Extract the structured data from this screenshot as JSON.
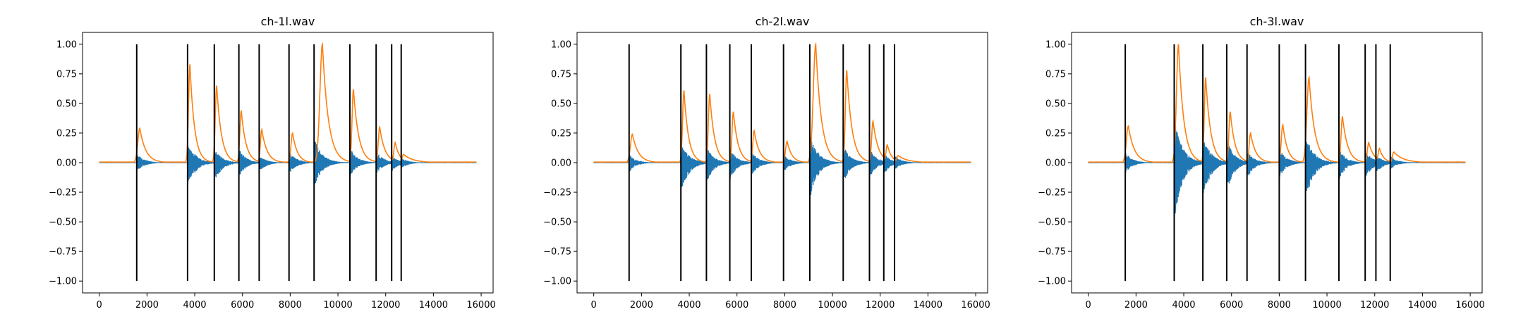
{
  "colors": {
    "waveform": "#1f77b4",
    "envelope": "#ff7f0e",
    "onset": "#000000",
    "axes": "#000000",
    "background": "#ffffff"
  },
  "chart_data": [
    {
      "type": "line",
      "title": "ch-1l.wav",
      "xlim": [
        -700,
        16500
      ],
      "ylim": [
        -1.1,
        1.1
      ],
      "xticks": [
        0,
        2000,
        4000,
        6000,
        8000,
        10000,
        12000,
        14000,
        16000
      ],
      "yticks": [
        -1.0,
        -0.75,
        -0.5,
        -0.25,
        0.0,
        0.25,
        0.5,
        0.75,
        1.0
      ],
      "xtick_labels": [
        "0",
        "2000",
        "4000",
        "6000",
        "8000",
        "10000",
        "12000",
        "14000",
        "16000"
      ],
      "ytick_labels": [
        "−1.00",
        "−0.75",
        "−0.50",
        "−0.25",
        "0.00",
        "0.25",
        "0.50",
        "0.75",
        "1.00"
      ],
      "grid": false,
      "x_extent": [
        0,
        15800
      ],
      "onsets": [
        1570,
        3700,
        4820,
        5850,
        6700,
        7950,
        9000,
        10500,
        11600,
        12250,
        12650
      ],
      "onset_ymin": -1.0,
      "onset_ymax": 1.0,
      "series": [
        {
          "label": "envelope",
          "peaks": [
            {
              "x": 1700,
              "y": 0.29,
              "rise": 130,
              "decay": 250
            },
            {
              "x": 3800,
              "y": 0.83,
              "rise": 90,
              "decay": 190
            },
            {
              "x": 4920,
              "y": 0.65,
              "rise": 90,
              "decay": 200
            },
            {
              "x": 5950,
              "y": 0.44,
              "rise": 90,
              "decay": 200
            },
            {
              "x": 6810,
              "y": 0.28,
              "rise": 90,
              "decay": 220
            },
            {
              "x": 8100,
              "y": 0.25,
              "rise": 100,
              "decay": 200
            },
            {
              "x": 9350,
              "y": 1.0,
              "rise": 160,
              "decay": 250
            },
            {
              "x": 10650,
              "y": 0.62,
              "rise": 90,
              "decay": 220
            },
            {
              "x": 11750,
              "y": 0.3,
              "rise": 90,
              "decay": 220
            },
            {
              "x": 12400,
              "y": 0.17,
              "rise": 90,
              "decay": 180
            },
            {
              "x": 12750,
              "y": 0.07,
              "rise": 90,
              "decay": 400
            }
          ]
        },
        {
          "label": "waveform",
          "bursts": [
            {
              "x": 1570,
              "pos": 0.08,
              "neg": -0.08,
              "decay": 300
            },
            {
              "x": 3700,
              "pos": 0.19,
              "neg": -0.22,
              "decay": 320
            },
            {
              "x": 4820,
              "pos": 0.13,
              "neg": -0.18,
              "decay": 300
            },
            {
              "x": 5850,
              "pos": 0.12,
              "neg": -0.12,
              "decay": 300
            },
            {
              "x": 6700,
              "pos": 0.06,
              "neg": -0.08,
              "decay": 300
            },
            {
              "x": 7950,
              "pos": 0.1,
              "neg": -0.1,
              "decay": 300
            },
            {
              "x": 9000,
              "pos": 0.22,
              "neg": -0.22,
              "decay": 320
            },
            {
              "x": 10500,
              "pos": 0.13,
              "neg": -0.12,
              "decay": 300
            },
            {
              "x": 11600,
              "pos": 0.1,
              "neg": -0.1,
              "decay": 300
            },
            {
              "x": 12250,
              "pos": 0.06,
              "neg": -0.08,
              "decay": 280
            },
            {
              "x": 12650,
              "pos": 0.04,
              "neg": -0.05,
              "decay": 300
            }
          ]
        }
      ]
    },
    {
      "type": "line",
      "title": "ch-2l.wav",
      "xlim": [
        -700,
        16500
      ],
      "ylim": [
        -1.1,
        1.1
      ],
      "xticks": [
        0,
        2000,
        4000,
        6000,
        8000,
        10000,
        12000,
        14000,
        16000
      ],
      "yticks": [
        -1.0,
        -0.75,
        -0.5,
        -0.25,
        0.0,
        0.25,
        0.5,
        0.75,
        1.0
      ],
      "xtick_labels": [
        "0",
        "2000",
        "4000",
        "6000",
        "8000",
        "10000",
        "12000",
        "14000",
        "16000"
      ],
      "ytick_labels": [
        "−1.00",
        "−0.75",
        "−0.50",
        "−0.25",
        "0.00",
        "0.25",
        "0.50",
        "0.75",
        "1.00"
      ],
      "grid": false,
      "x_extent": [
        0,
        15800
      ],
      "onsets": [
        1480,
        3650,
        4720,
        5700,
        6600,
        7950,
        9050,
        10450,
        11550,
        12150,
        12600
      ],
      "onset_ymin": -1.0,
      "onset_ymax": 1.0,
      "series": [
        {
          "label": "envelope",
          "peaks": [
            {
              "x": 1620,
              "y": 0.24,
              "rise": 130,
              "decay": 250
            },
            {
              "x": 3780,
              "y": 0.61,
              "rise": 90,
              "decay": 190
            },
            {
              "x": 4860,
              "y": 0.58,
              "rise": 90,
              "decay": 200
            },
            {
              "x": 5850,
              "y": 0.43,
              "rise": 90,
              "decay": 200
            },
            {
              "x": 6720,
              "y": 0.27,
              "rise": 90,
              "decay": 220
            },
            {
              "x": 8100,
              "y": 0.18,
              "rise": 100,
              "decay": 200
            },
            {
              "x": 9300,
              "y": 1.0,
              "rise": 160,
              "decay": 240
            },
            {
              "x": 10600,
              "y": 0.78,
              "rise": 90,
              "decay": 220
            },
            {
              "x": 11700,
              "y": 0.35,
              "rise": 90,
              "decay": 220
            },
            {
              "x": 12300,
              "y": 0.15,
              "rise": 90,
              "decay": 180
            },
            {
              "x": 12750,
              "y": 0.06,
              "rise": 90,
              "decay": 400
            }
          ]
        },
        {
          "label": "waveform",
          "bursts": [
            {
              "x": 1480,
              "pos": 0.07,
              "neg": -0.08,
              "decay": 300
            },
            {
              "x": 3650,
              "pos": 0.18,
              "neg": -0.28,
              "decay": 320
            },
            {
              "x": 4720,
              "pos": 0.14,
              "neg": -0.18,
              "decay": 300
            },
            {
              "x": 5700,
              "pos": 0.12,
              "neg": -0.15,
              "decay": 300
            },
            {
              "x": 6600,
              "pos": 0.1,
              "neg": -0.12,
              "decay": 300
            },
            {
              "x": 7950,
              "pos": 0.07,
              "neg": -0.08,
              "decay": 300
            },
            {
              "x": 9050,
              "pos": 0.26,
              "neg": -0.33,
              "decay": 320
            },
            {
              "x": 10450,
              "pos": 0.15,
              "neg": -0.18,
              "decay": 300
            },
            {
              "x": 11550,
              "pos": 0.12,
              "neg": -0.13,
              "decay": 300
            },
            {
              "x": 12150,
              "pos": 0.08,
              "neg": -0.1,
              "decay": 280
            },
            {
              "x": 12600,
              "pos": 0.06,
              "neg": -0.06,
              "decay": 300
            }
          ]
        }
      ]
    },
    {
      "type": "line",
      "title": "ch-3l.wav",
      "xlim": [
        -700,
        16500
      ],
      "ylim": [
        -1.1,
        1.1
      ],
      "xticks": [
        0,
        2000,
        4000,
        6000,
        8000,
        10000,
        12000,
        14000,
        16000
      ],
      "yticks": [
        -1.0,
        -0.75,
        -0.5,
        -0.25,
        0.0,
        0.25,
        0.5,
        0.75,
        1.0
      ],
      "xtick_labels": [
        "0",
        "2000",
        "4000",
        "6000",
        "8000",
        "10000",
        "12000",
        "14000",
        "16000"
      ],
      "ytick_labels": [
        "−1.00",
        "−0.75",
        "−0.50",
        "−0.25",
        "0.00",
        "0.25",
        "0.50",
        "0.75",
        "1.00"
      ],
      "grid": false,
      "x_extent": [
        0,
        15800
      ],
      "onsets": [
        1550,
        3600,
        4800,
        5800,
        6650,
        8000,
        9100,
        10500,
        11600,
        12050,
        12650
      ],
      "onset_ymin": -1.0,
      "onset_ymax": 1.0,
      "series": [
        {
          "label": "envelope",
          "peaks": [
            {
              "x": 1680,
              "y": 0.31,
              "rise": 130,
              "decay": 250
            },
            {
              "x": 3780,
              "y": 1.0,
              "rise": 130,
              "decay": 220
            },
            {
              "x": 4920,
              "y": 0.72,
              "rise": 90,
              "decay": 210
            },
            {
              "x": 5950,
              "y": 0.43,
              "rise": 90,
              "decay": 200
            },
            {
              "x": 6800,
              "y": 0.25,
              "rise": 90,
              "decay": 220
            },
            {
              "x": 8150,
              "y": 0.32,
              "rise": 100,
              "decay": 200
            },
            {
              "x": 9250,
              "y": 0.72,
              "rise": 140,
              "decay": 240
            },
            {
              "x": 10650,
              "y": 0.39,
              "rise": 90,
              "decay": 220
            },
            {
              "x": 11750,
              "y": 0.17,
              "rise": 90,
              "decay": 220
            },
            {
              "x": 12200,
              "y": 0.12,
              "rise": 90,
              "decay": 180
            },
            {
              "x": 12800,
              "y": 0.09,
              "rise": 90,
              "decay": 400
            }
          ]
        },
        {
          "label": "waveform",
          "bursts": [
            {
              "x": 1550,
              "pos": 0.09,
              "neg": -0.09,
              "decay": 300
            },
            {
              "x": 3600,
              "pos": 0.38,
              "neg": -0.5,
              "decay": 330
            },
            {
              "x": 4800,
              "pos": 0.25,
              "neg": -0.33,
              "decay": 310
            },
            {
              "x": 5800,
              "pos": 0.2,
              "neg": -0.25,
              "decay": 300
            },
            {
              "x": 6650,
              "pos": 0.1,
              "neg": -0.14,
              "decay": 300
            },
            {
              "x": 8000,
              "pos": 0.12,
              "neg": -0.13,
              "decay": 300
            },
            {
              "x": 9100,
              "pos": 0.26,
              "neg": -0.36,
              "decay": 320
            },
            {
              "x": 10500,
              "pos": 0.12,
              "neg": -0.15,
              "decay": 300
            },
            {
              "x": 11600,
              "pos": 0.1,
              "neg": -0.14,
              "decay": 300
            },
            {
              "x": 12050,
              "pos": 0.07,
              "neg": -0.1,
              "decay": 280
            },
            {
              "x": 12650,
              "pos": 0.06,
              "neg": -0.06,
              "decay": 300
            }
          ]
        }
      ]
    }
  ]
}
